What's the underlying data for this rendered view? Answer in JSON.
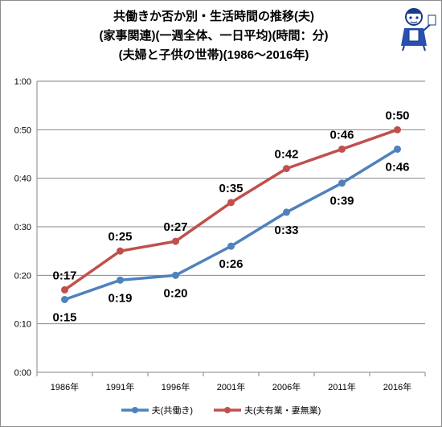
{
  "title_lines": [
    "共働きか否か別・生活時間の推移(夫)",
    "(家事関連)(一週全体、一日平均)(時間：分)",
    "(夫婦と子供の世帯)(1986～2016年)"
  ],
  "chart_data": {
    "type": "line",
    "categories": [
      "1986年",
      "1991年",
      "1996年",
      "2001年",
      "2006年",
      "2011年",
      "2016年"
    ],
    "y_ticks": [
      "0:00",
      "0:10",
      "0:20",
      "0:30",
      "0:40",
      "0:50",
      "1:00"
    ],
    "ylim": [
      0,
      60
    ],
    "grid": true,
    "legend_position": "bottom",
    "series": [
      {
        "name": "夫(共働き)",
        "color": "#4f81bd",
        "values": [
          15,
          19,
          20,
          26,
          33,
          39,
          46
        ],
        "labels": [
          "0:15",
          "0:19",
          "0:20",
          "0:26",
          "0:33",
          "0:39",
          "0:46"
        ],
        "label_position": "below"
      },
      {
        "name": "夫(夫有業・妻無業)",
        "color": "#c0504d",
        "values": [
          17,
          25,
          27,
          35,
          42,
          46,
          50
        ],
        "labels": [
          "0:17",
          "0:25",
          "0:27",
          "0:35",
          "0:42",
          "0:46",
          "0:50"
        ],
        "label_position": "above"
      }
    ]
  }
}
